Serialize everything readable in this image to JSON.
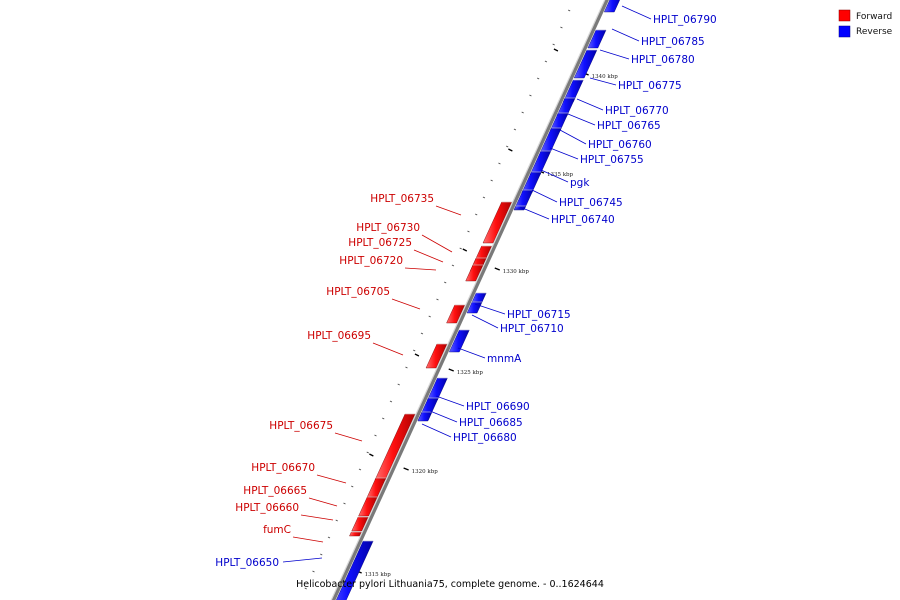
{
  "legend": {
    "forward_label": "Forward",
    "reverse_label": "Reverse",
    "forward_color": "#ff0000",
    "reverse_color": "#0000ff"
  },
  "caption": "Helicobacter pylori Lithuania75, complete genome. - 0..1624644",
  "colors": {
    "forward_label": "#cc0000",
    "reverse_label": "#0000cc",
    "backbone": "#999999"
  },
  "genome_view": {
    "ticks": [
      "1315 kbp",
      "1320 kbp",
      "1325 kbp",
      "1330 kbp",
      "1335 kbp",
      "1340 kbp"
    ],
    "forward_genes": [
      "HPLT_06735",
      "HPLT_06730",
      "HPLT_06725",
      "HPLT_06720",
      "HPLT_06705",
      "HPLT_06695",
      "HPLT_06675",
      "HPLT_06670",
      "HPLT_06665",
      "HPLT_06660",
      "fumC"
    ],
    "reverse_genes": [
      "HPLT_06790",
      "HPLT_06785",
      "HPLT_06780",
      "HPLT_06775",
      "HPLT_06770",
      "HPLT_06765",
      "HPLT_06760",
      "HPLT_06755",
      "pgk",
      "HPLT_06745",
      "HPLT_06740",
      "HPLT_06715",
      "HPLT_06710",
      "mnmA",
      "HPLT_06690",
      "HPLT_06685",
      "HPLT_06680",
      "HPLT_06650"
    ]
  }
}
